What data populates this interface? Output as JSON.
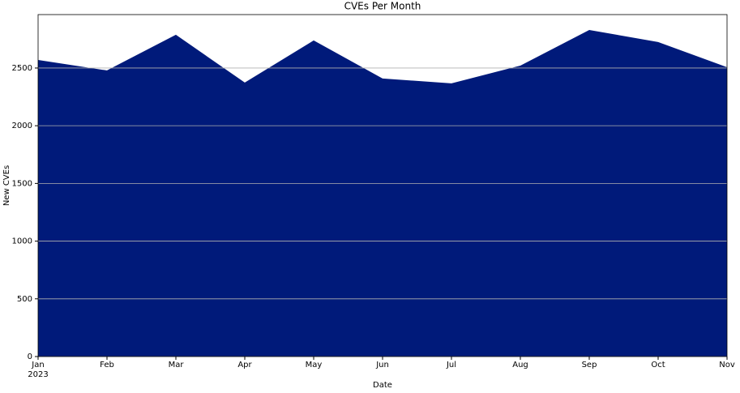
{
  "chart_data": {
    "type": "area",
    "title": "CVEs Per Month",
    "x_label": "Date",
    "y_label": "New CVEs",
    "categories": [
      "Jan",
      "Feb",
      "Mar",
      "Apr",
      "May",
      "Jun",
      "Jul",
      "Aug",
      "Sep",
      "Oct",
      "Nov"
    ],
    "year_label": "2023",
    "values": [
      2570,
      2479,
      2788,
      2374,
      2739,
      2409,
      2367,
      2521,
      2830,
      2725,
      2507
    ],
    "color": "#001a7a",
    "ylim": [
      0,
      2963
    ],
    "yticks": [
      0,
      500,
      1000,
      1500,
      2000,
      2500
    ],
    "grid": true
  }
}
